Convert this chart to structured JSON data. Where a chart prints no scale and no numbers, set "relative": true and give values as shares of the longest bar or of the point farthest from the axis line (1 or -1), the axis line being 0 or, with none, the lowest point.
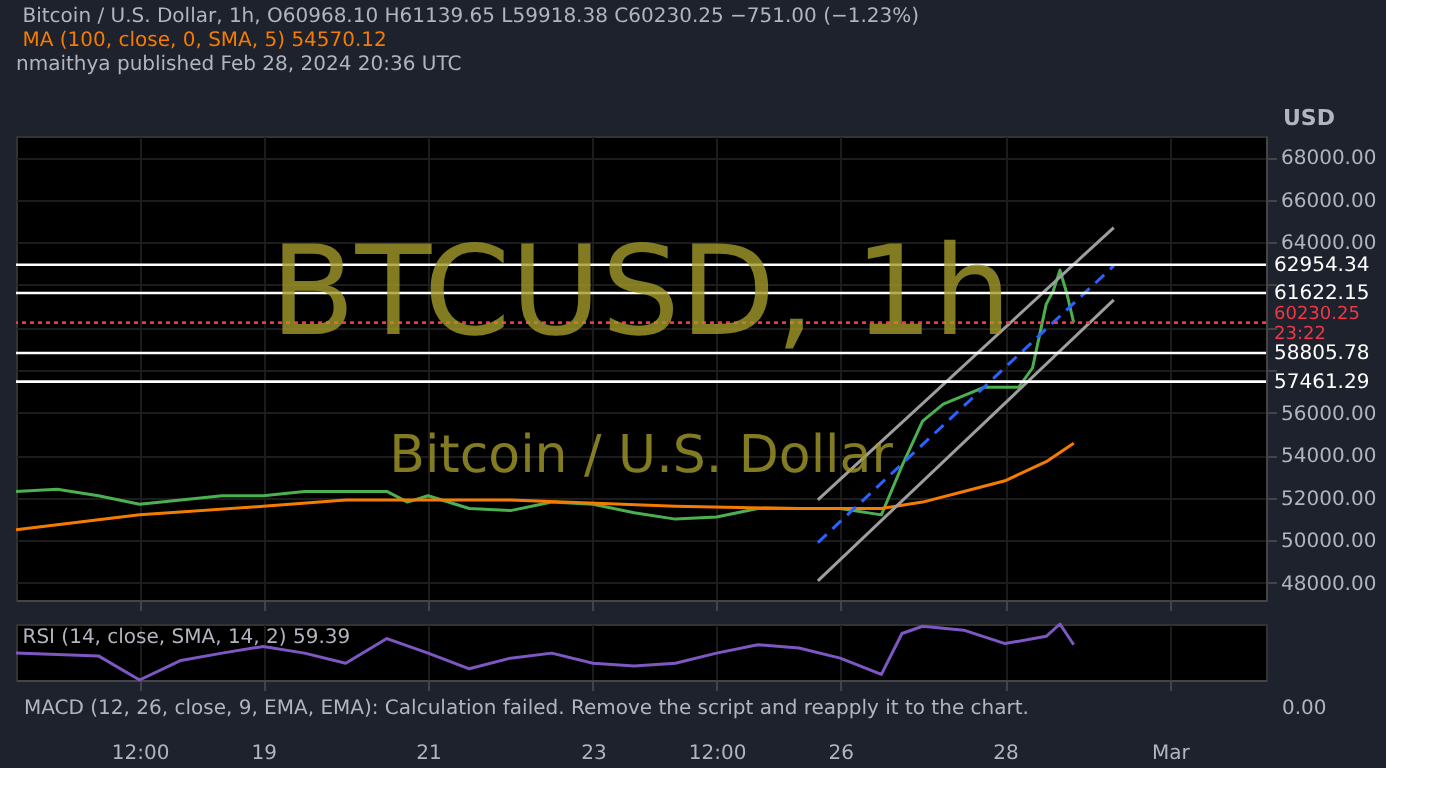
{
  "chart_data": [
    {
      "type": "line",
      "title": "Bitcoin / U.S. Dollar, 1h, O60968.10 H61139.65 L59918.38 C60230.25 −751.00 (−1.23%)",
      "subtitle": "MA (100, close, 0, SMA, 5) 54570.12",
      "ylabel": "USD",
      "annotations": [
        "nmaithya published Feb 28, 2024 20:36 UTC",
        "BTCUSD, 1h",
        "Bitcoin / U.S. Dollar"
      ],
      "x": [
        "2024-02-16T00:00",
        "2024-02-16T12:00",
        "2024-02-17T00:00",
        "2024-02-17T12:00",
        "2024-02-18T00:00",
        "2024-02-18T12:00",
        "2024-02-19T00:00",
        "2024-02-19T12:00",
        "2024-02-20T00:00",
        "2024-02-20T12:00",
        "2024-02-20T18:00",
        "2024-02-21T00:00",
        "2024-02-21T12:00",
        "2024-02-22T00:00",
        "2024-02-22T12:00",
        "2024-02-23T00:00",
        "2024-02-23T12:00",
        "2024-02-24T00:00",
        "2024-02-24T12:00",
        "2024-02-25T00:00",
        "2024-02-25T12:00",
        "2024-02-26T00:00",
        "2024-02-26T12:00",
        "2024-02-26T18:00",
        "2024-02-27T00:00",
        "2024-02-27T06:00",
        "2024-02-27T12:00",
        "2024-02-27T18:00",
        "2024-02-28T00:00",
        "2024-02-28T04:00",
        "2024-02-28T08:00",
        "2024-02-28T12:00",
        "2024-02-28T14:00",
        "2024-02-28T16:00",
        "2024-02-28T18:00",
        "2024-02-28T20:00"
      ],
      "series": [
        {
          "color": "#4caf50",
          "values": [
            52300,
            52400,
            52100,
            51700,
            51900,
            52100,
            52100,
            52300,
            52300,
            52300,
            51800,
            52100,
            51500,
            51400,
            51800,
            51700,
            51300,
            51000,
            51100,
            51500,
            51500,
            51500,
            51200,
            53500,
            55600,
            56400,
            56800,
            57200,
            57200,
            57200,
            58100,
            61100,
            61700,
            62700,
            61600,
            60230.25
          ]
        },
        {
          "color": "#f57c00",
          "x": [
            "2024-02-16T00:00",
            "2024-02-17T12:00",
            "2024-02-19T00:00",
            "2024-02-20T00:00",
            "2024-02-22T00:00",
            "2024-02-24T00:00",
            "2024-02-25T12:00",
            "2024-02-26T12:00",
            "2024-02-27T00:00",
            "2024-02-27T12:00",
            "2024-02-28T00:00",
            "2024-02-28T12:00",
            "2024-02-28T20:00"
          ],
          "values": [
            50500,
            51200,
            51600,
            51900,
            51900,
            51600,
            51500,
            51500,
            51800,
            52300,
            52800,
            53700,
            54570.12
          ]
        },
        {
          "color": "#9e9e9e",
          "x": [
            "2024-02-25T17:30",
            "2024-02-29T07:40"
          ],
          "values": [
            51900,
            64700
          ]
        },
        {
          "color": "#9e9e9e",
          "x": [
            "2024-02-25T17:30",
            "2024-02-29T07:40"
          ],
          "values": [
            48100,
            61300
          ]
        },
        {
          "color": "#2962ff",
          "line_style": "dashed",
          "x": [
            "2024-02-25T17:30",
            "2024-02-29T07:40"
          ],
          "values": [
            49900,
            62900
          ]
        }
      ],
      "ref_lines": [
        {
          "axis": "y",
          "value": 62954.34,
          "label": "62954.34",
          "color": "#ffffff"
        },
        {
          "axis": "y",
          "value": 61622.15,
          "label": "61622.15",
          "color": "#ffffff"
        },
        {
          "axis": "y",
          "value": 58805.78,
          "label": "58805.78",
          "color": "#ffffff"
        },
        {
          "axis": "y",
          "value": 57461.29,
          "label": "57461.29",
          "color": "#ffffff"
        },
        {
          "axis": "y",
          "value": 60230.25,
          "label": "60230.25\n23:22",
          "color": "#f23645",
          "line_style": "dotted"
        }
      ],
      "xlim": [
        "2024-02-16T00:00",
        "2024-03-02T04:00"
      ],
      "xticks": [
        {
          "value": "2024-02-17T12:00",
          "label": null
        },
        {
          "value": "2024-02-19T00:00",
          "label": null
        },
        {
          "value": "2024-02-21T00:00",
          "label": null
        },
        {
          "value": "2024-02-23T00:00",
          "label": null
        },
        {
          "value": "2024-02-24T12:00",
          "label": null
        },
        {
          "value": "2024-02-26T00:00",
          "label": null
        },
        {
          "value": "2024-02-28T00:00",
          "label": null
        },
        {
          "value": "2024-03-01T00:00",
          "label": null
        }
      ],
      "ylim": [
        47200,
        69000
      ],
      "yticks": [
        {
          "value": 48000,
          "label": "48000.00"
        },
        {
          "value": 50000,
          "label": "50000.00"
        },
        {
          "value": 52000,
          "label": "52000.00"
        },
        {
          "value": 54000,
          "label": "54000.00"
        },
        {
          "value": 56000,
          "label": "56000.00"
        },
        {
          "value": 58000,
          "label": null
        },
        {
          "value": 60000,
          "label": null
        },
        {
          "value": 62000,
          "label": null
        },
        {
          "value": 64000,
          "label": "64000.00"
        },
        {
          "value": 66000,
          "label": "66000.00"
        },
        {
          "value": 68000,
          "label": "68000.00"
        }
      ],
      "grid": true,
      "tick_labels": "y",
      "line_style": "solid",
      "marker": "none"
    },
    {
      "type": "line",
      "title": "RSI (14, close, SMA, 14, 2) 59.39",
      "relative": true,
      "annotations": [
        "MACD (12, 26, close, 9, EMA, EMA): Calculation failed. Remove the script and reapply it to the chart.",
        "0.00"
      ],
      "x": [
        "2024-02-16T00:00",
        "2024-02-17T00:00",
        "2024-02-17T12:00",
        "2024-02-18T00:00",
        "2024-02-18T12:00",
        "2024-02-19T00:00",
        "2024-02-19T12:00",
        "2024-02-20T00:00",
        "2024-02-20T12:00",
        "2024-02-21T00:00",
        "2024-02-21T12:00",
        "2024-02-22T00:00",
        "2024-02-22T12:00",
        "2024-02-23T00:00",
        "2024-02-23T12:00",
        "2024-02-24T00:00",
        "2024-02-24T12:00",
        "2024-02-25T00:00",
        "2024-02-25T12:00",
        "2024-02-26T00:00",
        "2024-02-26T12:00",
        "2024-02-26T18:00",
        "2024-02-27T00:00",
        "2024-02-27T12:00",
        "2024-02-28T00:00",
        "2024-02-28T12:00",
        "2024-02-28T16:00",
        "2024-02-28T20:00"
      ],
      "series": [
        {
          "color": "#7e57c2",
          "values": [
            0.48,
            0.43,
            0,
            0.35,
            0.48,
            0.6,
            0.48,
            0.3,
            0.74,
            0.48,
            0.2,
            0.39,
            0.48,
            0.3,
            0.25,
            0.3,
            0.48,
            0.63,
            0.57,
            0.39,
            0.1,
            0.83,
            0.96,
            0.89,
            0.65,
            0.78,
            1,
            0.63
          ]
        }
      ],
      "xlim": [
        "2024-02-16T00:00",
        "2024-03-02T04:00"
      ],
      "xticks": [
        {
          "value": "2024-02-17T12:00",
          "label": "12:00"
        },
        {
          "value": "2024-02-19T00:00",
          "label": "19"
        },
        {
          "value": "2024-02-21T00:00",
          "label": "21"
        },
        {
          "value": "2024-02-23T00:00",
          "label": "23"
        },
        {
          "value": "2024-02-24T12:00",
          "label": "12:00"
        },
        {
          "value": "2024-02-26T00:00",
          "label": "26"
        },
        {
          "value": "2024-02-28T00:00",
          "label": "28"
        },
        {
          "value": "2024-03-01T00:00",
          "label": "Mar"
        }
      ],
      "grid": "x",
      "tick_labels": "x"
    }
  ]
}
